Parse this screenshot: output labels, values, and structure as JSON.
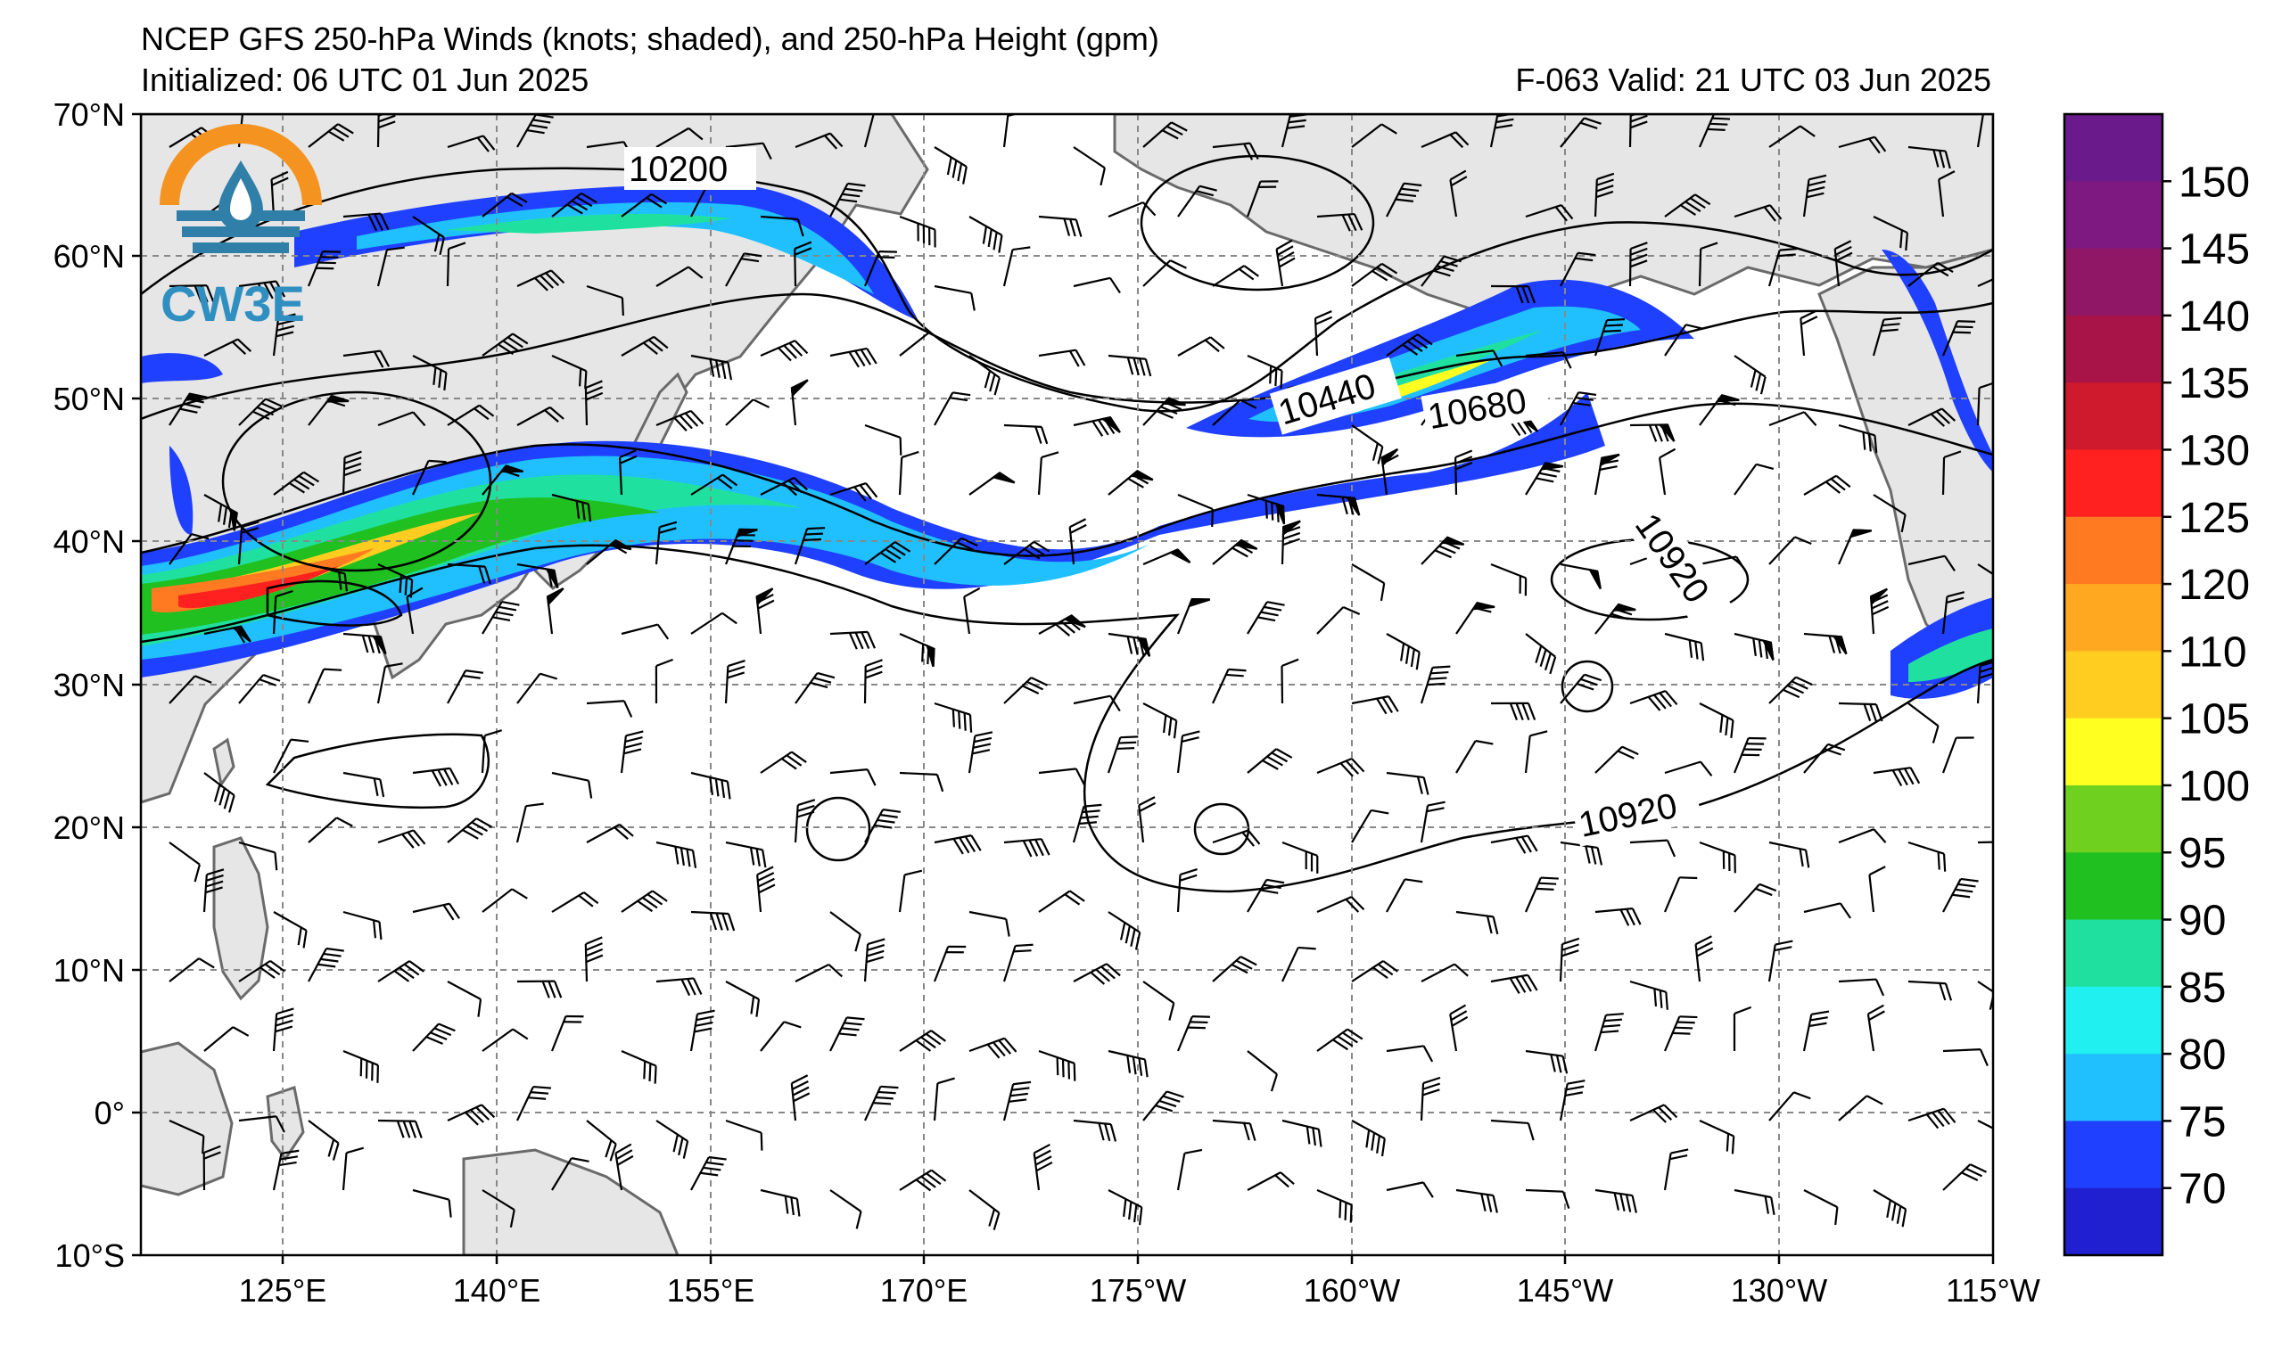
{
  "header": {
    "title": "NCEP GFS 250-hPa Winds (knots; shaded), and 250-hPa Height (gpm)",
    "initialized": "Initialized: 06 UTC 01 Jun 2025",
    "valid": "F-063  Valid: 21 UTC 03 Jun 2025"
  },
  "logo": {
    "text": "CW3E",
    "icon": "cw3e-water-drop-logo-icon"
  },
  "axes": {
    "lat_labels": [
      "70°N",
      "60°N",
      "50°N",
      "40°N",
      "30°N",
      "20°N",
      "10°N",
      "0°",
      "10°S"
    ],
    "lon_labels": [
      "125°E",
      "140°E",
      "155°E",
      "170°E",
      "175°W",
      "160°W",
      "145°W",
      "130°W",
      "115°W"
    ]
  },
  "contour_labels": [
    {
      "id": "c10200",
      "text": "10200"
    },
    {
      "id": "c10440",
      "text": "10440"
    },
    {
      "id": "c10680",
      "text": "10680"
    },
    {
      "id": "c10920a",
      "text": "10920"
    },
    {
      "id": "c10920b",
      "text": "10920"
    }
  ],
  "colorbar": {
    "labels": [
      "150",
      "145",
      "140",
      "135",
      "130",
      "125",
      "120",
      "110",
      "105",
      "100",
      "95",
      "90",
      "85",
      "80",
      "75",
      "70"
    ],
    "colors_top_to_bottom": [
      "#6a1a8a",
      "#7d1980",
      "#8f1766",
      "#a81448",
      "#cf1a2e",
      "#ff2020",
      "#ff7a20",
      "#ffa820",
      "#ffcc20",
      "#ffff20",
      "#70d020",
      "#20c020",
      "#20e0a0",
      "#20f0f0",
      "#20c0ff",
      "#2040ff",
      "#2020d0"
    ]
  },
  "colors": {
    "land": "#e6e6e6",
    "coast": "#6a6a6a",
    "grid": "#888888"
  }
}
